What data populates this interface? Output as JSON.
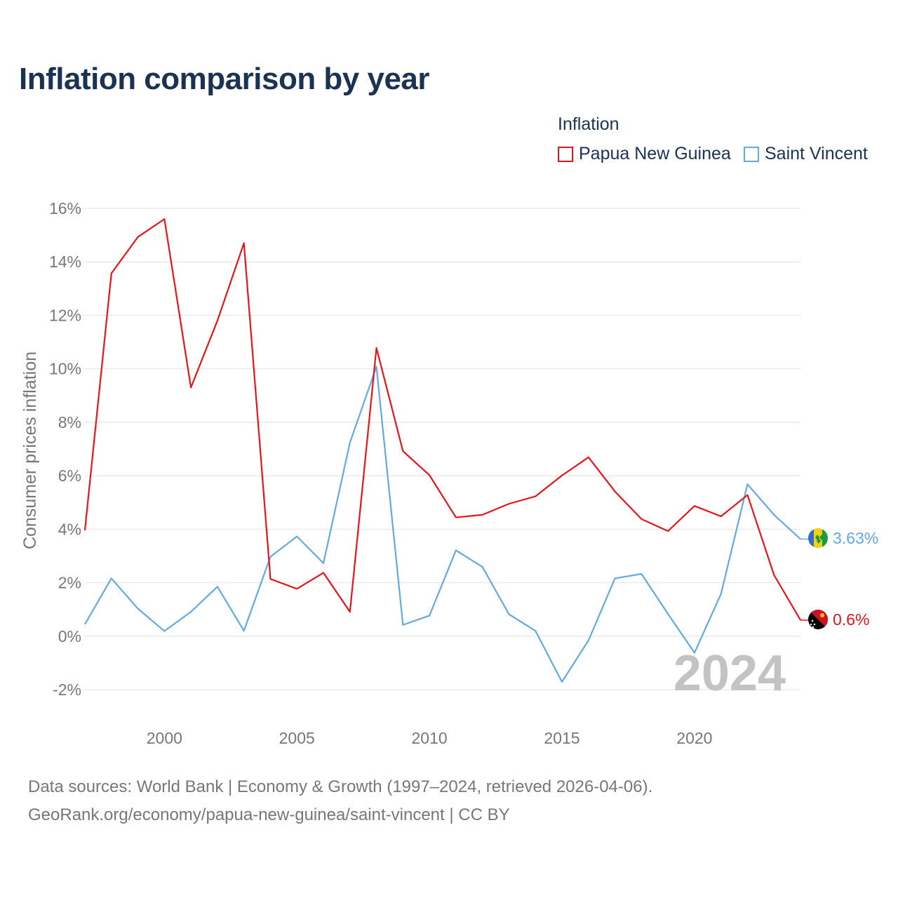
{
  "title": "Inflation comparison by year",
  "legend": {
    "title": "Inflation",
    "items": [
      {
        "name": "Papua New Guinea",
        "color": "#e8141b"
      },
      {
        "name": "Saint Vincent",
        "color": "#64a8e4"
      }
    ]
  },
  "source_line1": "Data sources: World Bank | Economy & Growth (1997–2024, retrieved 2026-04-06).",
  "source_line2": "GeoRank.org/economy/papua-new-guinea/saint-vincent | CC BY",
  "chart_data": {
    "type": "line",
    "title": "Inflation comparison by year",
    "xlabel": "",
    "ylabel": "Consumer prices inflation",
    "xlim": [
      1997,
      2024
    ],
    "ylim": [
      -2,
      16
    ],
    "y_ticks": [
      -2,
      0,
      2,
      4,
      6,
      8,
      10,
      12,
      14,
      16
    ],
    "y_tick_labels": [
      "-2%",
      "0%",
      "2%",
      "4%",
      "6%",
      "8%",
      "10%",
      "12%",
      "14%",
      "16%"
    ],
    "x_ticks": [
      2000,
      2005,
      2010,
      2015,
      2020
    ],
    "x_tick_labels": [
      "2000",
      "2005",
      "2010",
      "2015",
      "2020"
    ],
    "grid": true,
    "legend_position": "top-right",
    "year_watermark": "2024",
    "x": [
      1997,
      1998,
      1999,
      2000,
      2001,
      2002,
      2003,
      2004,
      2005,
      2006,
      2007,
      2008,
      2009,
      2010,
      2011,
      2012,
      2013,
      2014,
      2015,
      2016,
      2017,
      2018,
      2019,
      2020,
      2021,
      2022,
      2023,
      2024
    ],
    "series": [
      {
        "name": "Papua New Guinea",
        "color": "#e8141b",
        "values": [
          3.96,
          13.57,
          14.93,
          15.6,
          9.3,
          11.8,
          14.7,
          2.14,
          1.77,
          2.37,
          0.91,
          10.78,
          6.92,
          6.02,
          4.44,
          4.54,
          4.95,
          5.23,
          6.01,
          6.69,
          5.41,
          4.38,
          3.93,
          4.87,
          4.48,
          5.28,
          2.29,
          0.6
        ],
        "end_label": "0.6%"
      },
      {
        "name": "Saint Vincent",
        "color": "#64a8e4",
        "values": [
          0.45,
          2.16,
          1.03,
          0.19,
          0.91,
          1.85,
          0.2,
          2.97,
          3.73,
          2.73,
          7.24,
          10.08,
          0.42,
          0.77,
          3.21,
          2.59,
          0.82,
          0.2,
          -1.71,
          -0.16,
          2.16,
          2.33,
          0.83,
          -0.62,
          1.58,
          5.68,
          4.54,
          3.63
        ],
        "end_label": "3.63%"
      }
    ]
  }
}
